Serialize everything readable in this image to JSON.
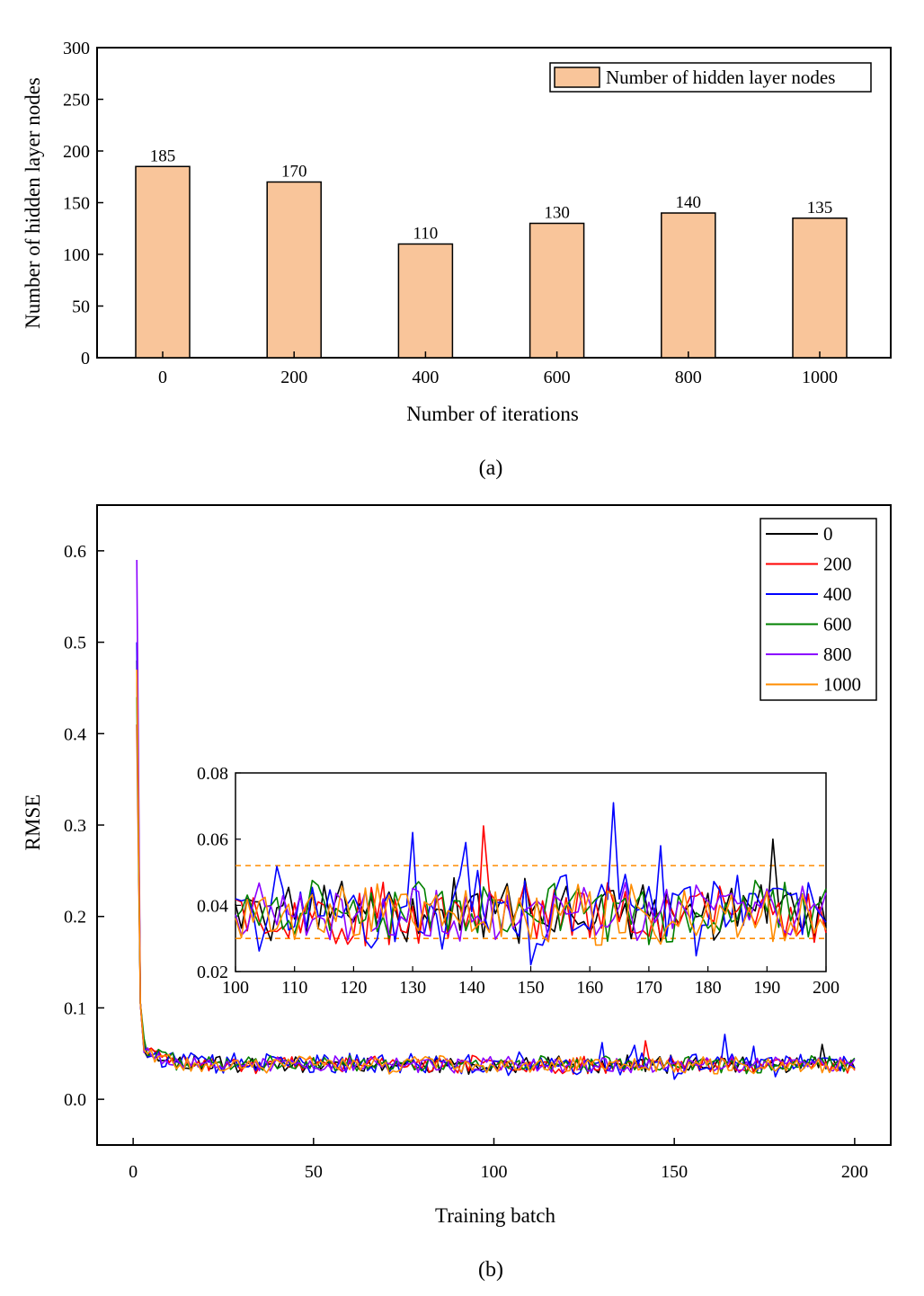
{
  "chart_data": [
    {
      "type": "bar",
      "panel_label": "(a)",
      "categories": [
        "0",
        "200",
        "400",
        "600",
        "800",
        "1000"
      ],
      "series": [
        {
          "name": "Number of hidden layer nodes",
          "values": [
            185,
            170,
            110,
            130,
            140,
            135
          ],
          "color": "#F9C59A"
        }
      ],
      "xlabel": "Number of iterations",
      "ylabel": "Number of hidden layer nodes",
      "ylim": [
        0,
        300
      ],
      "yticks": [
        0,
        50,
        100,
        150,
        200,
        250,
        300
      ],
      "legend": {
        "position": "top-right",
        "label": "Number of hidden layer nodes"
      }
    },
    {
      "type": "line",
      "panel_label": "(b)",
      "xlabel": "Training batch",
      "ylabel": "RMSE",
      "xlim": [
        -10,
        210
      ],
      "ylim": [
        -0.05,
        0.65
      ],
      "xticks": [
        0,
        50,
        100,
        150,
        200
      ],
      "yticks": [
        "0.0",
        "0.1",
        "0.2",
        "0.3",
        "0.4",
        "0.5",
        "0.6"
      ],
      "series": [
        {
          "name": "0",
          "color": "#000000",
          "peak": 0.48,
          "noise": 0.006,
          "seed": 11
        },
        {
          "name": "200",
          "color": "#FF0000",
          "peak": 0.41,
          "noise": 0.006,
          "seed": 23
        },
        {
          "name": "400",
          "color": "#0000FF",
          "peak": 0.5,
          "noise": 0.008,
          "seed": 37
        },
        {
          "name": "600",
          "color": "#008000",
          "peak": 0.44,
          "noise": 0.006,
          "seed": 41
        },
        {
          "name": "800",
          "color": "#8B00FF",
          "peak": 0.59,
          "noise": 0.006,
          "seed": 53
        },
        {
          "name": "1000",
          "color": "#FF8C00",
          "peak": 0.47,
          "noise": 0.006,
          "seed": 67
        }
      ],
      "spikes": [
        {
          "series": "0",
          "x": 191,
          "y": 0.06
        },
        {
          "series": "200",
          "x": 142,
          "y": 0.064
        },
        {
          "series": "400",
          "x": 164,
          "y": 0.071
        },
        {
          "series": "400",
          "x": 130,
          "y": 0.062
        },
        {
          "series": "400",
          "x": 139,
          "y": 0.059
        },
        {
          "series": "400",
          "x": 172,
          "y": 0.058
        },
        {
          "series": "400",
          "x": 150,
          "y": 0.022
        }
      ],
      "legend": {
        "position": "top-right",
        "entries": [
          "0",
          "200",
          "400",
          "600",
          "800",
          "1000"
        ]
      },
      "inset": {
        "xlim": [
          100,
          200
        ],
        "ylim": [
          0.02,
          0.08
        ],
        "xticks": [
          "100",
          "110",
          "120",
          "130",
          "140",
          "150",
          "160",
          "170",
          "180",
          "190",
          "200"
        ],
        "yticks": [
          "0.02",
          "0.04",
          "0.06",
          "0.08"
        ],
        "reference_lines": [
          0.052,
          0.03
        ],
        "reference_color": "#FF8C00"
      }
    }
  ]
}
